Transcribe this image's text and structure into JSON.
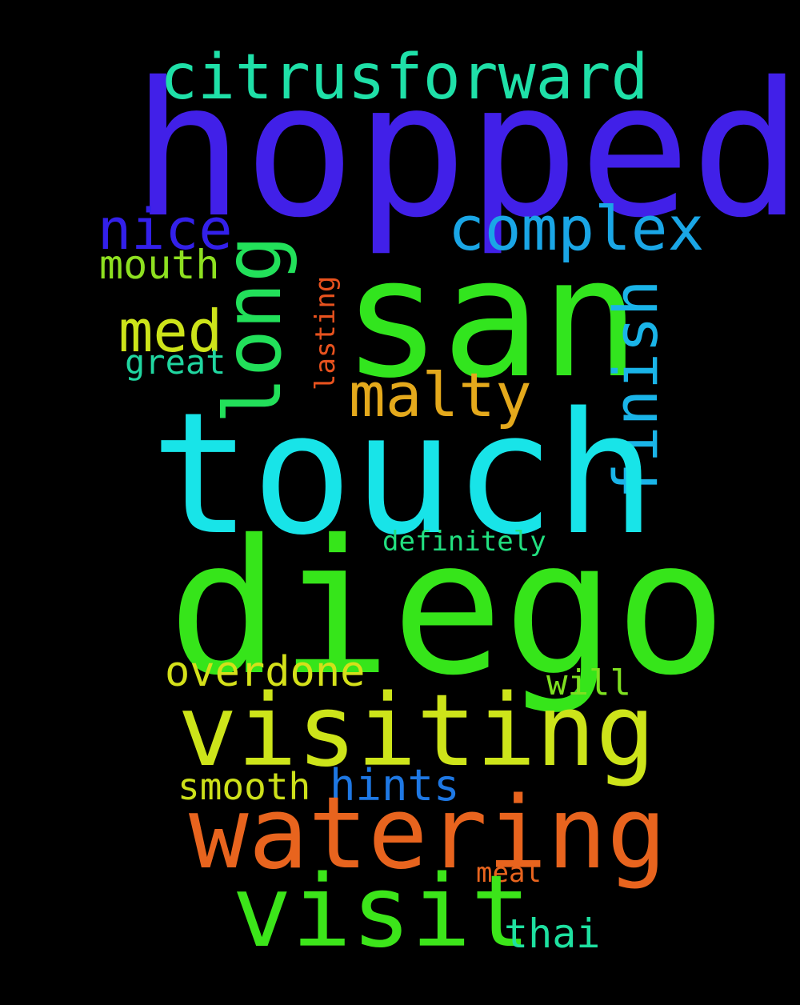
{
  "words": [
    {
      "key": "hopped",
      "text": "hopped",
      "color": "#4120e8"
    },
    {
      "key": "citrusforward",
      "text": "citrusforward",
      "color": "#1fe0a8"
    },
    {
      "key": "complex",
      "text": "complex",
      "color": "#1aa6e6"
    },
    {
      "key": "nice",
      "text": "nice",
      "color": "#3320ea"
    },
    {
      "key": "long",
      "text": "long",
      "color": "#22e05a"
    },
    {
      "key": "san",
      "text": "san",
      "color": "#32e51e"
    },
    {
      "key": "mouth",
      "text": "mouth",
      "color": "#8ee020"
    },
    {
      "key": "lasting",
      "text": "lasting",
      "color": "#e8521e"
    },
    {
      "key": "med",
      "text": "med",
      "color": "#cde41a"
    },
    {
      "key": "great",
      "text": "great",
      "color": "#20d6a0"
    },
    {
      "key": "finish",
      "text": "finish",
      "color": "#1ab4e8"
    },
    {
      "key": "malty",
      "text": "malty",
      "color": "#e4a91c"
    },
    {
      "key": "touch",
      "text": "touch",
      "color": "#18e4e8"
    },
    {
      "key": "definitely",
      "text": "definitely",
      "color": "#22e080"
    },
    {
      "key": "diego",
      "text": "diego",
      "color": "#36e51a"
    },
    {
      "key": "overdone",
      "text": "overdone",
      "color": "#d4e01a"
    },
    {
      "key": "will",
      "text": "will",
      "color": "#7ee020"
    },
    {
      "key": "visiting",
      "text": "visiting",
      "color": "#cde41a"
    },
    {
      "key": "smooth",
      "text": "smooth",
      "color": "#cde01a"
    },
    {
      "key": "hints",
      "text": "hints",
      "color": "#1e78e4"
    },
    {
      "key": "watering",
      "text": "watering",
      "color": "#e8641e"
    },
    {
      "key": "meal",
      "text": "meal",
      "color": "#e8641e"
    },
    {
      "key": "visit",
      "text": "visit",
      "color": "#3ce51a"
    },
    {
      "key": "thai",
      "text": "thai",
      "color": "#1ee0a0"
    }
  ]
}
